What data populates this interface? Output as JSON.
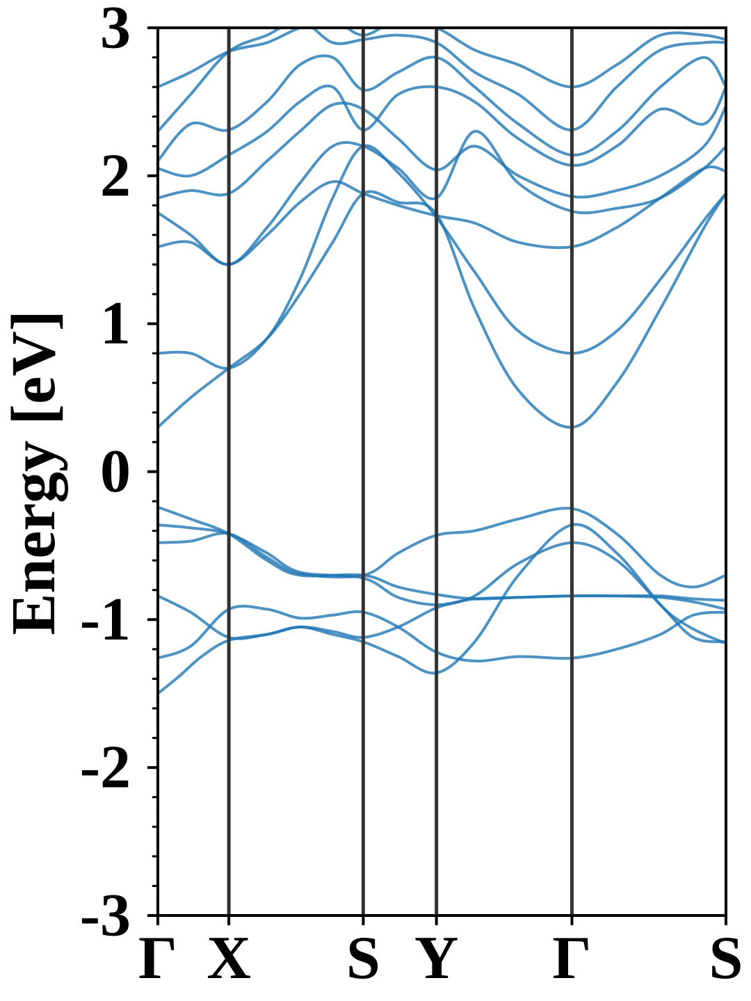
{
  "chart_data": {
    "type": "line",
    "title": "",
    "xlabel": "",
    "ylabel": "Energy [eV]",
    "ylim": [
      -3,
      3
    ],
    "y_major_ticks": [
      -3,
      -2,
      -1,
      0,
      1,
      2,
      3
    ],
    "y_tick_labels": [
      "-3",
      "-2",
      "-1",
      "0",
      "1",
      "2",
      "3"
    ],
    "y_minor_step": 0.2,
    "x_path_length": 5.2,
    "high_symmetry_points": [
      {
        "label": "Γ",
        "x": 0.0
      },
      {
        "label": "X",
        "x": 0.65
      },
      {
        "label": "S",
        "x": 1.88
      },
      {
        "label": "Y",
        "x": 2.55
      },
      {
        "label": "Γ",
        "x": 3.79
      },
      {
        "label": "S",
        "x": 5.2
      }
    ],
    "grid": false,
    "legend": "none",
    "line_color": "#1f77b4",
    "line_alpha": 0.8,
    "divider_color": "#333333",
    "bands": [
      {
        "x": [
          0,
          0.2,
          0.4,
          0.65,
          1.0,
          1.3,
          1.6,
          1.88,
          2.2,
          2.55,
          2.9,
          3.3,
          3.79,
          4.2,
          4.6,
          4.8,
          5.0,
          5.2
        ],
        "y": [
          -1.5,
          -1.38,
          -1.25,
          -1.14,
          -1.1,
          -1.05,
          -1.1,
          -1.15,
          -1.25,
          -1.36,
          -1.15,
          -0.7,
          -0.36,
          -0.55,
          -0.9,
          -1.02,
          -1.1,
          -1.16
        ]
      },
      {
        "x": [
          0,
          0.3,
          0.65,
          1.0,
          1.3,
          1.6,
          1.88,
          2.2,
          2.55,
          2.9,
          3.3,
          3.79,
          4.2,
          4.6,
          4.9,
          5.2
        ],
        "y": [
          -1.26,
          -1.18,
          -0.93,
          -0.93,
          -0.99,
          -0.97,
          -0.95,
          -1.05,
          -1.22,
          -1.28,
          -1.25,
          -1.26,
          -1.2,
          -1.1,
          -0.97,
          -0.95
        ]
      },
      {
        "x": [
          0,
          0.3,
          0.65,
          1.0,
          1.3,
          1.6,
          1.88,
          2.2,
          2.55,
          2.9,
          3.3,
          3.79,
          4.2,
          4.6,
          4.9,
          5.2
        ],
        "y": [
          -0.84,
          -0.95,
          -1.12,
          -1.1,
          -1.05,
          -1.08,
          -1.12,
          -1.05,
          -0.92,
          -0.84,
          -0.62,
          -0.48,
          -0.6,
          -0.9,
          -1.12,
          -1.15
        ]
      },
      {
        "x": [
          0,
          0.3,
          0.65,
          1.0,
          1.3,
          1.88,
          2.2,
          2.55,
          2.9,
          3.3,
          3.79,
          4.2,
          4.6,
          4.9,
          5.2
        ],
        "y": [
          -0.24,
          -0.32,
          -0.42,
          -0.6,
          -0.7,
          -0.7,
          -0.78,
          -0.83,
          -0.86,
          -0.85,
          -0.84,
          -0.84,
          -0.85,
          -0.88,
          -0.93
        ]
      },
      {
        "x": [
          0,
          0.3,
          0.65,
          1.0,
          1.3,
          1.88,
          2.2,
          2.55,
          2.9,
          3.3,
          3.79,
          4.2,
          4.6,
          4.9,
          5.2
        ],
        "y": [
          -0.48,
          -0.47,
          -0.42,
          -0.58,
          -0.69,
          -0.7,
          -0.55,
          -0.43,
          -0.4,
          -0.32,
          -0.25,
          -0.42,
          -0.7,
          -0.78,
          -0.7
        ]
      },
      {
        "x": [
          0,
          0.3,
          0.65,
          1.0,
          1.3,
          1.88,
          2.2,
          2.55,
          2.9,
          3.3,
          3.79,
          4.2,
          4.6,
          4.9,
          5.2
        ],
        "y": [
          -0.36,
          -0.38,
          -0.42,
          -0.55,
          -0.68,
          -0.72,
          -0.85,
          -0.9,
          -0.86,
          -0.85,
          -0.84,
          -0.84,
          -0.84,
          -0.86,
          -0.87
        ]
      },
      {
        "x": [
          0,
          0.3,
          0.65,
          1.0,
          1.3,
          1.6,
          1.88,
          2.2,
          2.55,
          2.9,
          3.3,
          3.79,
          4.2,
          4.6,
          5.0,
          5.2
        ],
        "y": [
          0.3,
          0.5,
          0.7,
          0.9,
          1.2,
          1.55,
          1.88,
          1.82,
          1.74,
          1.1,
          0.55,
          0.3,
          0.6,
          1.1,
          1.65,
          1.88
        ]
      },
      {
        "x": [
          0,
          0.3,
          0.65,
          1.0,
          1.3,
          1.6,
          1.88,
          2.2,
          2.55,
          2.9,
          3.3,
          3.79,
          4.2,
          4.6,
          5.0,
          5.2
        ],
        "y": [
          0.8,
          0.8,
          0.7,
          0.9,
          1.3,
          1.85,
          2.2,
          2.02,
          1.72,
          1.35,
          0.95,
          0.8,
          0.95,
          1.3,
          1.7,
          1.88
        ]
      },
      {
        "x": [
          0,
          0.3,
          0.65,
          1.0,
          1.3,
          1.6,
          1.88,
          2.2,
          2.55,
          2.9,
          3.3,
          3.79,
          4.2,
          4.6,
          5.0,
          5.2
        ],
        "y": [
          1.52,
          1.55,
          1.4,
          1.6,
          1.82,
          1.96,
          1.88,
          1.8,
          1.73,
          1.68,
          1.55,
          1.52,
          1.65,
          1.85,
          2.05,
          2.03
        ]
      },
      {
        "x": [
          0,
          0.3,
          0.65,
          1.0,
          1.3,
          1.6,
          1.88,
          2.2,
          2.55,
          2.9,
          3.3,
          3.79,
          4.2,
          4.6,
          5.0,
          5.2
        ],
        "y": [
          1.75,
          1.6,
          1.4,
          1.65,
          1.95,
          2.2,
          2.2,
          2.05,
          1.85,
          2.3,
          1.95,
          1.76,
          1.78,
          1.85,
          2.05,
          2.2
        ]
      },
      {
        "x": [
          0,
          0.3,
          0.65,
          1.0,
          1.3,
          1.6,
          1.88,
          2.2,
          2.55,
          2.9,
          3.3,
          3.79,
          4.2,
          4.6,
          5.0,
          5.2
        ],
        "y": [
          1.85,
          1.9,
          1.88,
          2.1,
          2.3,
          2.48,
          2.45,
          2.25,
          2.04,
          2.2,
          2.0,
          1.86,
          1.9,
          2.0,
          2.2,
          2.47
        ]
      },
      {
        "x": [
          0,
          0.3,
          0.65,
          1.0,
          1.3,
          1.6,
          1.88,
          2.2,
          2.55,
          2.9,
          3.3,
          3.79,
          4.2,
          4.6,
          5.0,
          5.2
        ],
        "y": [
          2.05,
          2.0,
          2.14,
          2.3,
          2.5,
          2.6,
          2.31,
          2.55,
          2.6,
          2.5,
          2.25,
          2.07,
          2.2,
          2.45,
          2.35,
          2.6
        ]
      },
      {
        "x": [
          0,
          0.3,
          0.65,
          1.0,
          1.3,
          1.6,
          1.88,
          2.2,
          2.55,
          2.9,
          3.3,
          3.79,
          4.2,
          4.6,
          5.0,
          5.2
        ],
        "y": [
          2.1,
          2.35,
          2.31,
          2.5,
          2.75,
          2.8,
          2.58,
          2.7,
          2.8,
          2.6,
          2.35,
          2.14,
          2.3,
          2.6,
          2.8,
          2.6
        ]
      },
      {
        "x": [
          0,
          0.3,
          0.65,
          1.0,
          1.3,
          1.6,
          1.88,
          2.2,
          2.55,
          2.9,
          3.3,
          3.79,
          4.2,
          4.6,
          5.0,
          5.2
        ],
        "y": [
          2.3,
          2.55,
          2.84,
          2.95,
          3.05,
          2.9,
          2.92,
          2.95,
          2.9,
          2.7,
          2.55,
          2.31,
          2.6,
          2.85,
          2.9,
          2.9
        ]
      },
      {
        "x": [
          0,
          0.3,
          0.65,
          1.0,
          1.3,
          1.6,
          1.88,
          2.2,
          2.55,
          2.9,
          3.3,
          3.79,
          4.2,
          4.6,
          5.0,
          5.2
        ],
        "y": [
          2.6,
          2.7,
          2.84,
          2.9,
          3.0,
          3.05,
          2.95,
          3.05,
          3.0,
          2.85,
          2.75,
          2.6,
          2.75,
          2.95,
          2.95,
          2.92
        ]
      }
    ]
  }
}
